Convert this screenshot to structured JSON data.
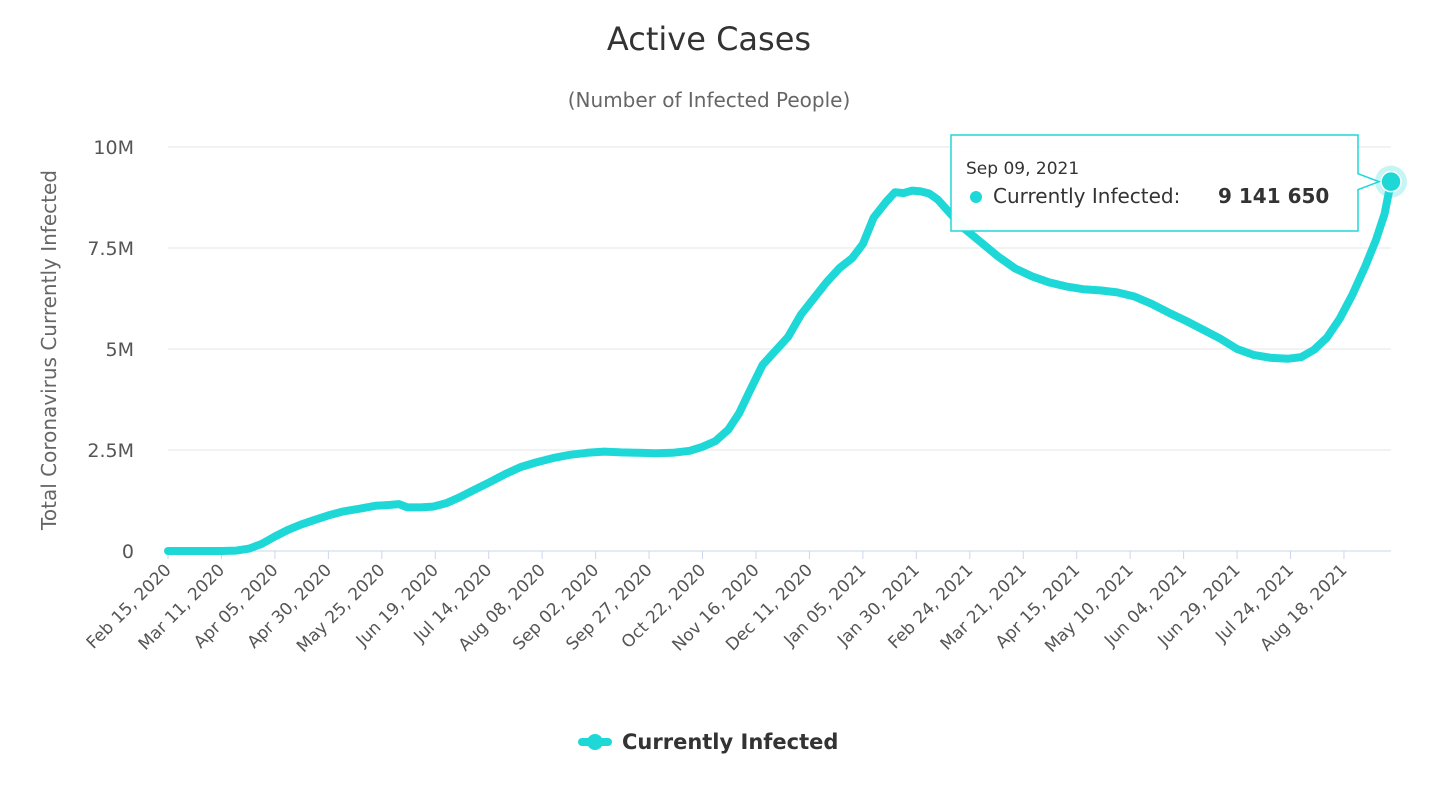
{
  "chart_data": {
    "type": "line",
    "title": "Active Cases",
    "subtitle": "(Number of Infected People)",
    "ylabel": "Total Coronavirus Currently Infected",
    "xlabel": "",
    "ylim": [
      0,
      10000000
    ],
    "yticks": [
      {
        "value": 0,
        "label": "0"
      },
      {
        "value": 2500000,
        "label": "2.5M"
      },
      {
        "value": 5000000,
        "label": "5M"
      },
      {
        "value": 7500000,
        "label": "7.5M"
      },
      {
        "value": 10000000,
        "label": "10M"
      }
    ],
    "x_start": "Feb 15, 2020",
    "x_end": "Sep 09, 2021",
    "x_ticks": [
      {
        "day": 0,
        "label": "Feb 15, 2020"
      },
      {
        "day": 25,
        "label": "Mar 11, 2020"
      },
      {
        "day": 50,
        "label": "Apr 05, 2020"
      },
      {
        "day": 75,
        "label": "Apr 30, 2020"
      },
      {
        "day": 100,
        "label": "May 25, 2020"
      },
      {
        "day": 125,
        "label": "Jun 19, 2020"
      },
      {
        "day": 150,
        "label": "Jul 14, 2020"
      },
      {
        "day": 175,
        "label": "Aug 08, 2020"
      },
      {
        "day": 200,
        "label": "Sep 02, 2020"
      },
      {
        "day": 225,
        "label": "Sep 27, 2020"
      },
      {
        "day": 250,
        "label": "Oct 22, 2020"
      },
      {
        "day": 275,
        "label": "Nov 16, 2020"
      },
      {
        "day": 300,
        "label": "Dec 11, 2020"
      },
      {
        "day": 325,
        "label": "Jan 05, 2021"
      },
      {
        "day": 350,
        "label": "Jan 30, 2021"
      },
      {
        "day": 375,
        "label": "Feb 24, 2021"
      },
      {
        "day": 400,
        "label": "Mar 21, 2021"
      },
      {
        "day": 425,
        "label": "Apr 15, 2021"
      },
      {
        "day": 450,
        "label": "May 10, 2021"
      },
      {
        "day": 475,
        "label": "Jun 04, 2021"
      },
      {
        "day": 500,
        "label": "Jun 29, 2021"
      },
      {
        "day": 525,
        "label": "Jul 24, 2021"
      },
      {
        "day": 550,
        "label": "Aug 18, 2021"
      }
    ],
    "x_max_day": 572,
    "series": [
      {
        "name": "Currently Infected",
        "color": "#1ed8d8",
        "points": [
          [
            0,
            0
          ],
          [
            15,
            0
          ],
          [
            25,
            0
          ],
          [
            32,
            10000
          ],
          [
            38,
            60000
          ],
          [
            44,
            180000
          ],
          [
            50,
            360000
          ],
          [
            56,
            520000
          ],
          [
            62,
            650000
          ],
          [
            68,
            760000
          ],
          [
            75,
            880000
          ],
          [
            82,
            980000
          ],
          [
            90,
            1050000
          ],
          [
            97,
            1120000
          ],
          [
            104,
            1140000
          ],
          [
            108,
            1160000
          ],
          [
            112,
            1080000
          ],
          [
            118,
            1080000
          ],
          [
            124,
            1100000
          ],
          [
            130,
            1180000
          ],
          [
            136,
            1320000
          ],
          [
            142,
            1480000
          ],
          [
            150,
            1690000
          ],
          [
            158,
            1910000
          ],
          [
            165,
            2080000
          ],
          [
            172,
            2190000
          ],
          [
            180,
            2300000
          ],
          [
            188,
            2380000
          ],
          [
            196,
            2430000
          ],
          [
            204,
            2460000
          ],
          [
            212,
            2440000
          ],
          [
            220,
            2430000
          ],
          [
            228,
            2420000
          ],
          [
            236,
            2430000
          ],
          [
            244,
            2480000
          ],
          [
            250,
            2580000
          ],
          [
            256,
            2720000
          ],
          [
            262,
            3000000
          ],
          [
            267,
            3400000
          ],
          [
            272,
            3950000
          ],
          [
            278,
            4600000
          ],
          [
            284,
            4950000
          ],
          [
            290,
            5300000
          ],
          [
            296,
            5850000
          ],
          [
            302,
            6250000
          ],
          [
            308,
            6650000
          ],
          [
            314,
            7000000
          ],
          [
            320,
            7250000
          ],
          [
            325,
            7600000
          ],
          [
            330,
            8250000
          ],
          [
            336,
            8650000
          ],
          [
            340,
            8880000
          ],
          [
            344,
            8860000
          ],
          [
            348,
            8920000
          ],
          [
            352,
            8900000
          ],
          [
            356,
            8850000
          ],
          [
            360,
            8700000
          ],
          [
            366,
            8350000
          ],
          [
            372,
            8000000
          ],
          [
            380,
            7650000
          ],
          [
            388,
            7300000
          ],
          [
            396,
            7000000
          ],
          [
            404,
            6800000
          ],
          [
            412,
            6650000
          ],
          [
            420,
            6550000
          ],
          [
            428,
            6480000
          ],
          [
            436,
            6450000
          ],
          [
            444,
            6400000
          ],
          [
            452,
            6300000
          ],
          [
            460,
            6120000
          ],
          [
            468,
            5900000
          ],
          [
            476,
            5700000
          ],
          [
            484,
            5480000
          ],
          [
            492,
            5260000
          ],
          [
            500,
            5000000
          ],
          [
            508,
            4850000
          ],
          [
            516,
            4780000
          ],
          [
            524,
            4760000
          ],
          [
            530,
            4800000
          ],
          [
            536,
            4980000
          ],
          [
            542,
            5280000
          ],
          [
            548,
            5750000
          ],
          [
            554,
            6350000
          ],
          [
            560,
            7050000
          ],
          [
            565,
            7700000
          ],
          [
            569,
            8350000
          ],
          [
            572,
            9141650
          ]
        ]
      }
    ],
    "legend": {
      "position": "bottom-center",
      "label": "Currently Infected"
    },
    "tooltip": {
      "date": "Sep 09, 2021",
      "label": "Currently Infected:",
      "value": "9 141 650",
      "point_day": 572,
      "point_value": 9141650
    }
  },
  "colors": {
    "series": "#1ed8d8",
    "grid": "#e6e6e6",
    "axis": "#ccd6eb",
    "tooltip_border": "#1ed8d8"
  }
}
